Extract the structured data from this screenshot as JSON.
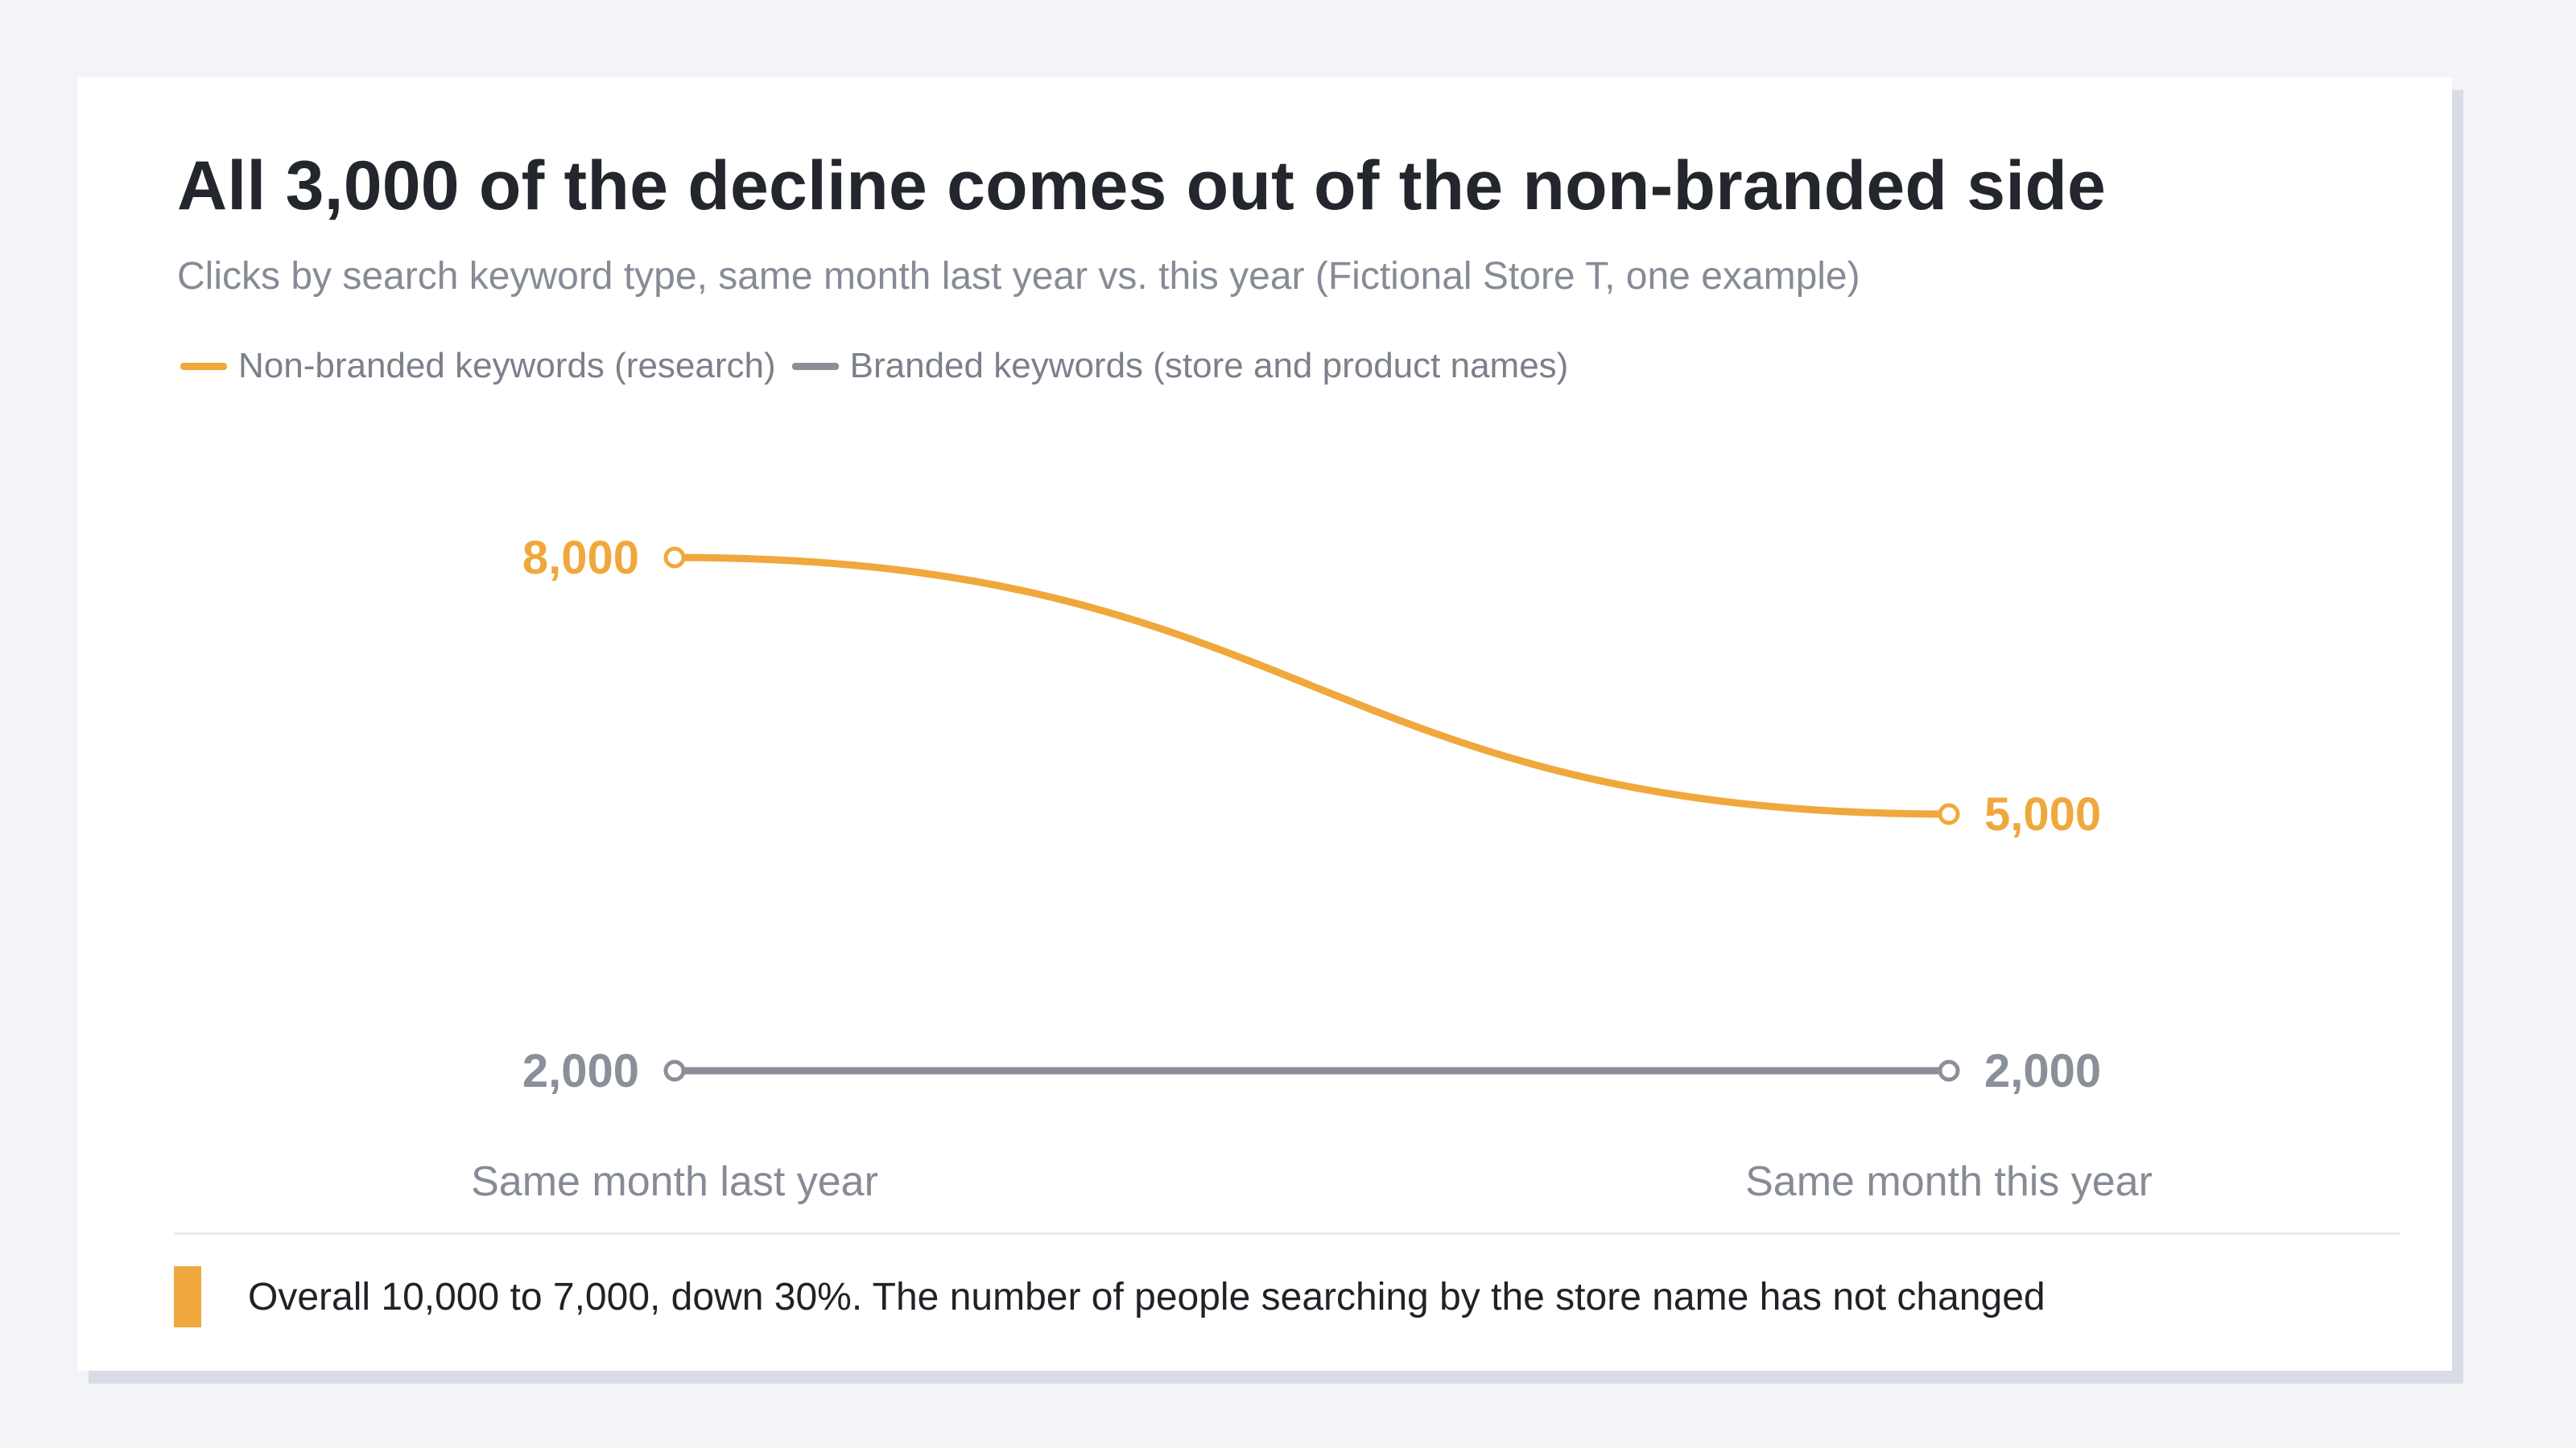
{
  "title": "All 3,000 of the decline comes out of the non-branded side",
  "subtitle": "Clicks by search keyword type, same month last year vs. this year (Fictional Store T, one example)",
  "footnote": "Overall 10,000 to 7,000, down 30%. The number of people searching by the store name has not changed",
  "colors": {
    "nonbranded": "#f0a83c",
    "branded": "#8a8f99",
    "title": "#23262d",
    "muted": "#868b96",
    "divider": "#e9eaee"
  },
  "chart_data": {
    "type": "line",
    "categories": [
      "Same month last year",
      "Same month this year"
    ],
    "series": [
      {
        "name": "Non-branded keywords (research)",
        "values": [
          8000,
          5000
        ],
        "labels": [
          "8,000",
          "5,000"
        ],
        "color": "#f0a83c"
      },
      {
        "name": "Branded keywords (store and product names)",
        "values": [
          2000,
          2000
        ],
        "labels": [
          "2,000",
          "2,000"
        ],
        "color": "#8a8f99"
      }
    ],
    "title": "All 3,000 of the decline comes out of the non-branded side",
    "xlabel": "",
    "ylabel": "",
    "grid": false,
    "legend": "top-left"
  }
}
